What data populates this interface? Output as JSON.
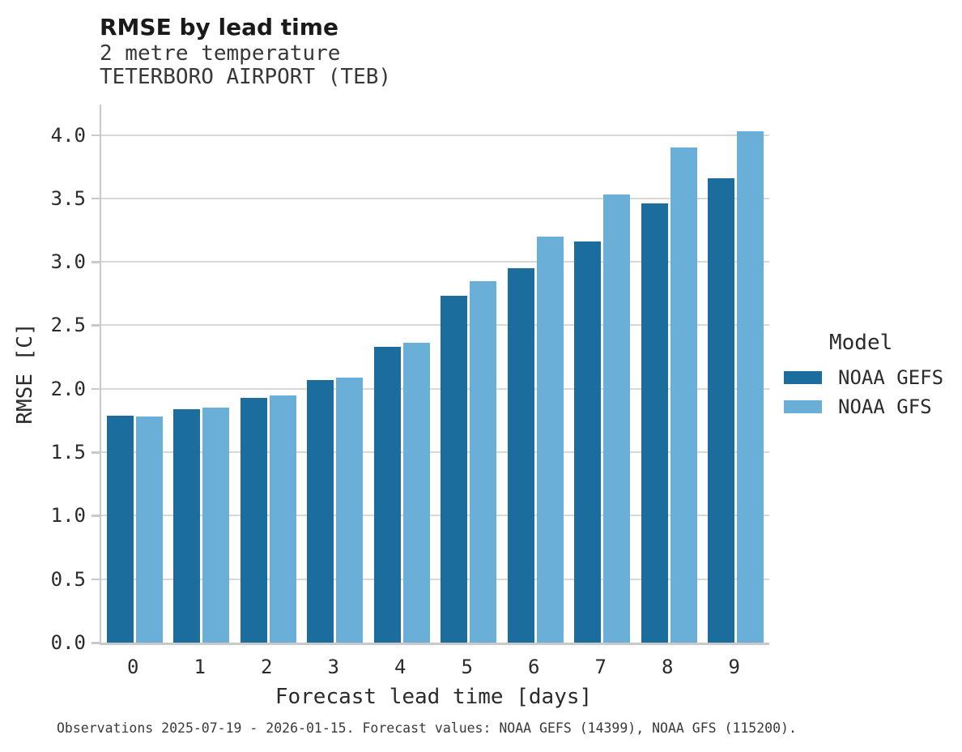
{
  "header": {
    "title": "RMSE by lead time",
    "subtitle_variable": "2 metre temperature",
    "subtitle_station": "TETERBORO AIRPORT (TEB)"
  },
  "legend": {
    "title": "Model",
    "entries": [
      {
        "label": "NOAA GEFS",
        "color": "#1a6d9d"
      },
      {
        "label": "NOAA GFS",
        "color": "#69afd7"
      }
    ]
  },
  "footer": {
    "caption": "Observations 2025-07-19 - 2026-01-15. Forecast values: NOAA GEFS (14399), NOAA GFS (115200)."
  },
  "chart_data": {
    "type": "bar",
    "title": "RMSE by lead time",
    "subtitle": [
      "2 metre temperature",
      "TETERBORO AIRPORT (TEB)"
    ],
    "xlabel": "Forecast lead time [days]",
    "ylabel": "RMSE [C]",
    "categories": [
      "0",
      "1",
      "2",
      "3",
      "4",
      "5",
      "6",
      "7",
      "8",
      "9"
    ],
    "series": [
      {
        "name": "NOAA GEFS",
        "color": "#1a6d9d",
        "values": [
          1.79,
          1.84,
          1.93,
          2.07,
          2.33,
          2.73,
          2.95,
          3.16,
          3.46,
          3.66
        ]
      },
      {
        "name": "NOAA GFS",
        "color": "#69afd7",
        "values": [
          1.78,
          1.85,
          1.95,
          2.09,
          2.36,
          2.85,
          3.2,
          3.53,
          3.9,
          4.03
        ]
      }
    ],
    "ylim": [
      0,
      4.24
    ],
    "yticks": [
      0.0,
      0.5,
      1.0,
      1.5,
      2.0,
      2.5,
      3.0,
      3.5,
      4.0
    ],
    "ytick_labels": [
      "0.0",
      "0.5",
      "1.0",
      "1.5",
      "2.0",
      "2.5",
      "3.0",
      "3.5",
      "4.0"
    ],
    "grid": true,
    "legend_position": "right",
    "legend_title": "Model"
  },
  "colors": {
    "series_dark": "#1a6d9d",
    "series_light": "#69afd7",
    "gridline": "#d8d8d8",
    "spine": "#c9c9c9",
    "text": "#2b2b2b",
    "background": "#ffffff"
  }
}
